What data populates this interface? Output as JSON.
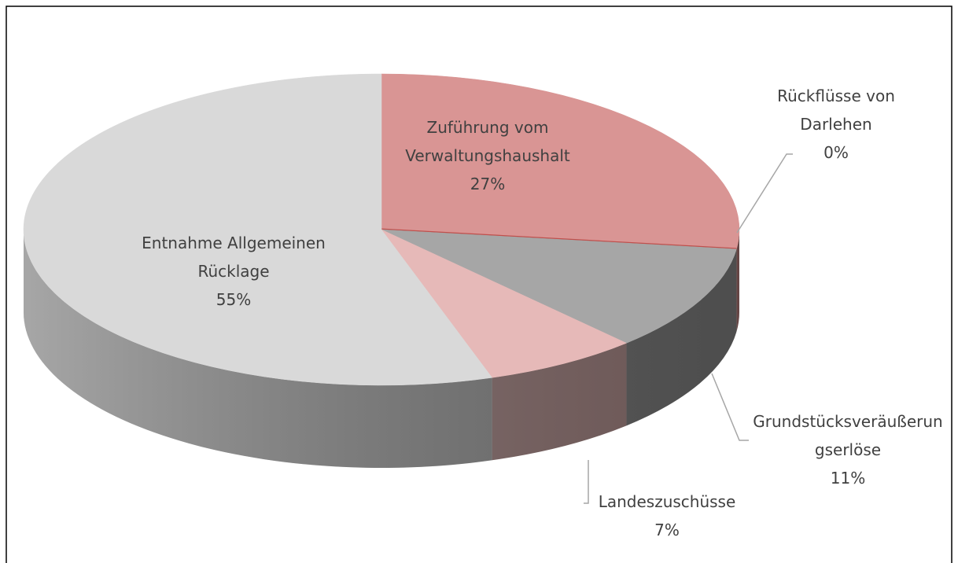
{
  "chart_data": {
    "type": "pie",
    "categories": [
      "Zuführung vom Verwaltungshaushalt",
      "Rückflüsse von Darlehen",
      "Grundstücksveräußerungserlöse",
      "Landeszuschüsse",
      "Entnahme Allgemeinen Rücklage"
    ],
    "values": [
      27,
      0,
      11,
      7,
      55
    ],
    "value_labels": [
      "27%",
      "0%",
      "11%",
      "7%",
      "55%"
    ],
    "colors": [
      "#d99594",
      "#c0504d",
      "#a6a6a6",
      "#e6b9b8",
      "#d9d9d9"
    ]
  }
}
